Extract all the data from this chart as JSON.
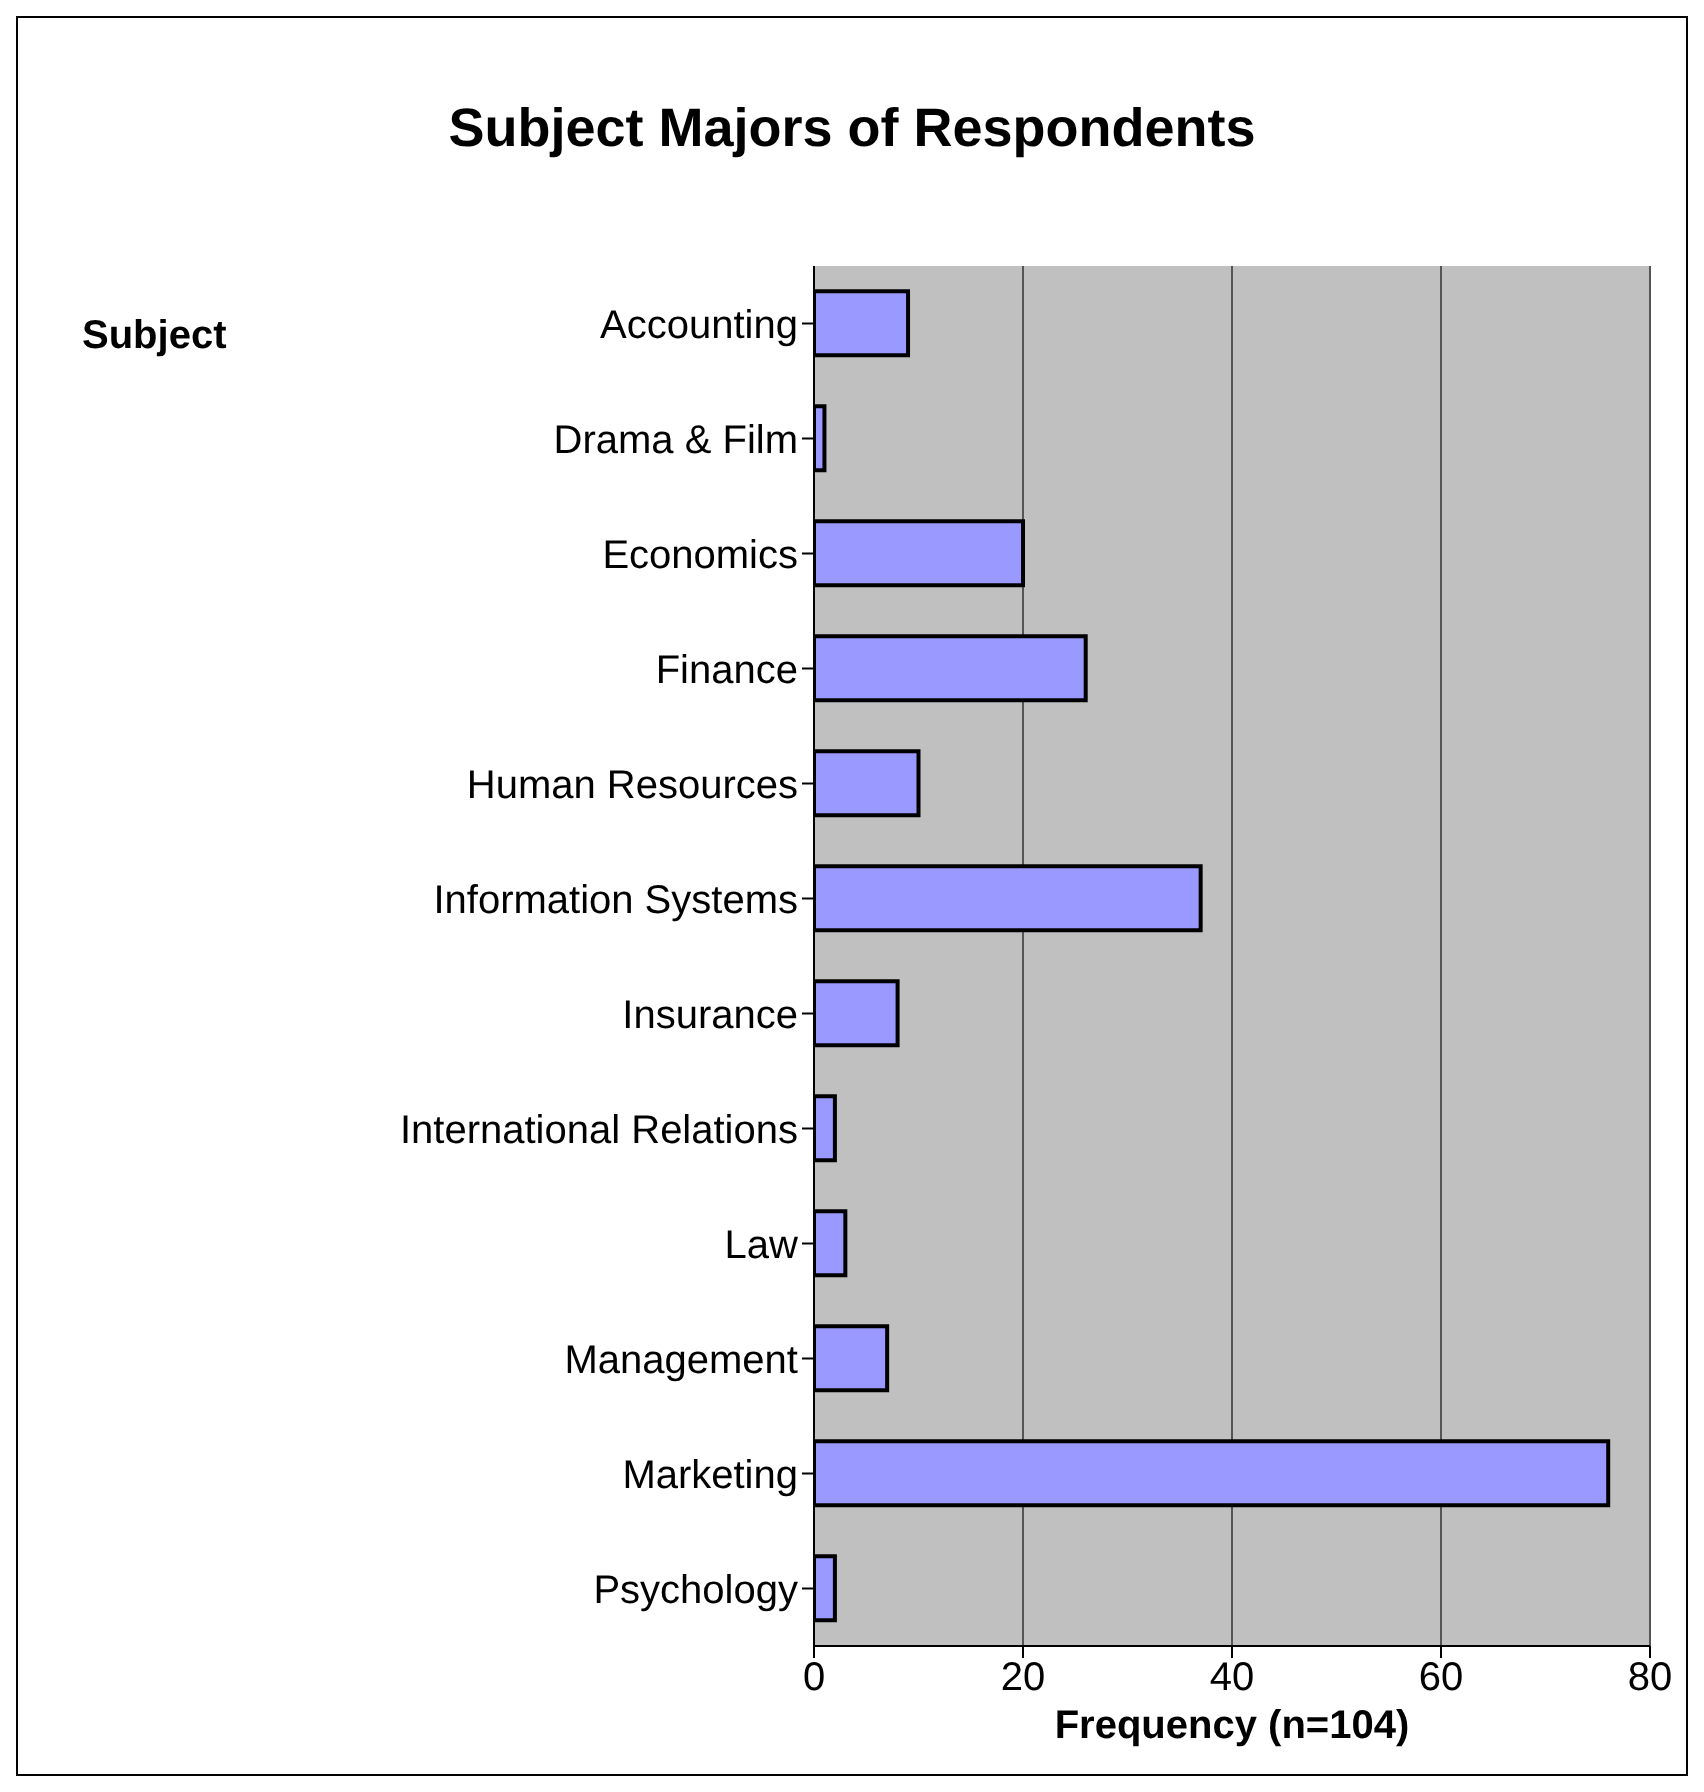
{
  "chart_data": {
    "type": "bar",
    "orientation": "horizontal",
    "title": "Subject Majors of Respondents",
    "xlabel": "Frequency (n=104)",
    "ylabel": "Subject",
    "categories": [
      "Accounting",
      "Drama & Film",
      "Economics",
      "Finance",
      "Human Resources",
      "Information Systems",
      "Insurance",
      "International Relations",
      "Law",
      "Management",
      "Marketing",
      "Psychology"
    ],
    "values": [
      9,
      1,
      20,
      26,
      10,
      37,
      8,
      2,
      3,
      7,
      76,
      2
    ],
    "color": "#9999ff",
    "xlim": [
      0,
      80
    ],
    "xticks": [
      0,
      20,
      40,
      60,
      80
    ],
    "grid": "x"
  }
}
